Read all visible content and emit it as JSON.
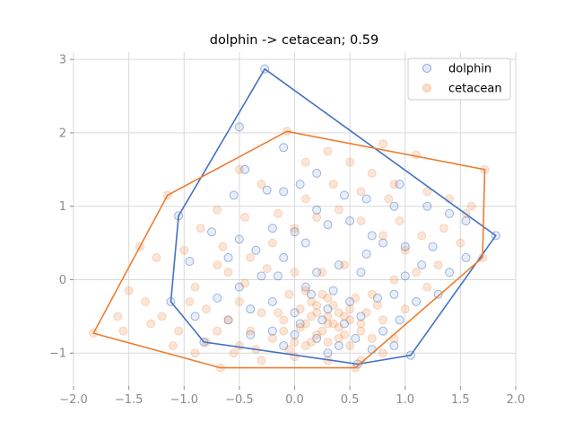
{
  "chart_data": {
    "type": "scatter",
    "title": "dolphin -> cetacean; 0.59",
    "xlabel": "",
    "ylabel": "",
    "xlim": [
      -2.0,
      2.0
    ],
    "ylim": [
      -1.45,
      3.1
    ],
    "xticks": [
      -2.0,
      -1.5,
      -1.0,
      -0.5,
      0.0,
      0.5,
      1.0,
      1.5,
      2.0
    ],
    "xtick_labels": [
      "−2.0",
      "−1.5",
      "−1.0",
      "−0.5",
      "0.0",
      "0.5",
      "1.0",
      "1.5",
      "2.0"
    ],
    "yticks": [
      -1,
      0,
      1,
      2,
      3
    ],
    "ytick_labels": [
      "−1",
      "0",
      "1",
      "2",
      "3"
    ],
    "grid": true,
    "legend_position": "top-right",
    "series": [
      {
        "name": "dolphin",
        "color": "#4472c4",
        "marker": "circle-open-translucent",
        "hull": [
          [
            -0.27,
            2.87
          ],
          [
            1.82,
            0.6
          ],
          [
            1.05,
            -1.03
          ],
          [
            0.57,
            -1.15
          ],
          [
            -0.82,
            -0.85
          ],
          [
            -1.12,
            -0.3
          ],
          [
            -1.05,
            0.87
          ]
        ],
        "points": [
          [
            -0.27,
            2.87
          ],
          [
            -0.5,
            2.08
          ],
          [
            -0.45,
            1.5
          ],
          [
            -0.1,
            1.8
          ],
          [
            -0.55,
            1.15
          ],
          [
            -0.25,
            1.22
          ],
          [
            -0.1,
            1.2
          ],
          [
            0.05,
            1.3
          ],
          [
            0.2,
            1.45
          ],
          [
            0.45,
            1.15
          ],
          [
            0.65,
            1.1
          ],
          [
            0.9,
            1.0
          ],
          [
            0.95,
            1.3
          ],
          [
            1.2,
            1.0
          ],
          [
            1.4,
            0.9
          ],
          [
            1.55,
            0.8
          ],
          [
            1.82,
            0.6
          ],
          [
            -0.75,
            0.65
          ],
          [
            -0.5,
            0.55
          ],
          [
            -0.35,
            0.4
          ],
          [
            -0.6,
            0.3
          ],
          [
            -0.95,
            0.25
          ],
          [
            -1.05,
            0.87
          ],
          [
            -0.2,
            0.7
          ],
          [
            0.0,
            0.65
          ],
          [
            0.1,
            0.5
          ],
          [
            0.3,
            0.75
          ],
          [
            0.5,
            0.8
          ],
          [
            0.7,
            0.6
          ],
          [
            0.8,
            0.5
          ],
          [
            1.0,
            0.45
          ],
          [
            1.15,
            0.2
          ],
          [
            1.25,
            0.45
          ],
          [
            1.4,
            0.1
          ],
          [
            1.55,
            0.3
          ],
          [
            1.3,
            -0.2
          ],
          [
            1.1,
            -0.3
          ],
          [
            0.9,
            -0.2
          ],
          [
            0.6,
            0.1
          ],
          [
            0.4,
            0.2
          ],
          [
            0.2,
            0.1
          ],
          [
            -0.1,
            0.3
          ],
          [
            -0.3,
            0.05
          ],
          [
            -0.5,
            -0.1
          ],
          [
            -0.7,
            -0.25
          ],
          [
            -1.12,
            -0.3
          ],
          [
            -0.9,
            -0.5
          ],
          [
            -0.6,
            -0.55
          ],
          [
            -0.4,
            -0.4
          ],
          [
            -0.2,
            -0.3
          ],
          [
            0.0,
            -0.45
          ],
          [
            0.15,
            -0.2
          ],
          [
            0.3,
            -0.4
          ],
          [
            0.45,
            -0.6
          ],
          [
            0.6,
            -0.5
          ],
          [
            0.8,
            -0.7
          ],
          [
            0.95,
            -0.55
          ],
          [
            1.05,
            -1.03
          ],
          [
            0.9,
            -0.9
          ],
          [
            0.7,
            -0.95
          ],
          [
            0.57,
            -1.15
          ],
          [
            0.4,
            -0.9
          ],
          [
            0.2,
            -0.8
          ],
          [
            0.0,
            -0.75
          ],
          [
            -0.2,
            -0.7
          ],
          [
            -0.4,
            -0.75
          ],
          [
            -0.82,
            -0.85
          ],
          [
            0.1,
            -0.1
          ],
          [
            0.25,
            -0.55
          ],
          [
            0.35,
            -0.15
          ],
          [
            0.5,
            -0.3
          ],
          [
            0.05,
            -0.6
          ],
          [
            -0.1,
            -0.9
          ],
          [
            0.3,
            -1.0
          ],
          [
            0.55,
            -0.8
          ],
          [
            0.75,
            -0.25
          ],
          [
            1.0,
            0.05
          ],
          [
            0.65,
            0.35
          ],
          [
            -0.15,
            0.05
          ],
          [
            0.2,
            0.95
          ]
        ]
      },
      {
        "name": "cetacean",
        "color": "#ed7d31",
        "marker": "circle-filled-translucent",
        "hull": [
          [
            -0.07,
            2.02
          ],
          [
            1.72,
            1.5
          ],
          [
            1.7,
            0.3
          ],
          [
            0.55,
            -1.2
          ],
          [
            -0.67,
            -1.2
          ],
          [
            -1.82,
            -0.73
          ],
          [
            -1.15,
            1.15
          ]
        ],
        "points": [
          [
            -0.07,
            2.02
          ],
          [
            0.8,
            1.85
          ],
          [
            1.1,
            1.7
          ],
          [
            1.72,
            1.5
          ],
          [
            -1.15,
            1.15
          ],
          [
            -1.82,
            -0.73
          ],
          [
            -0.67,
            -1.2
          ],
          [
            0.55,
            -1.2
          ],
          [
            1.7,
            0.3
          ],
          [
            -1.4,
            0.45
          ],
          [
            -1.5,
            -0.15
          ],
          [
            -1.3,
            -0.6
          ],
          [
            -1.6,
            -0.5
          ],
          [
            -1.1,
            -0.9
          ],
          [
            -0.9,
            -1.0
          ],
          [
            -1.0,
            0.4
          ],
          [
            -0.85,
            0.7
          ],
          [
            -0.7,
            0.95
          ],
          [
            -0.5,
            1.5
          ],
          [
            -0.3,
            1.3
          ],
          [
            0.1,
            1.6
          ],
          [
            0.3,
            1.75
          ],
          [
            0.5,
            1.6
          ],
          [
            0.7,
            1.45
          ],
          [
            0.9,
            1.3
          ],
          [
            1.2,
            1.2
          ],
          [
            1.4,
            1.1
          ],
          [
            1.55,
            0.9
          ],
          [
            1.5,
            0.5
          ],
          [
            1.3,
            0.2
          ],
          [
            1.2,
            -0.1
          ],
          [
            1.0,
            -0.4
          ],
          [
            0.9,
            -0.8
          ],
          [
            0.8,
            -1.0
          ],
          [
            0.6,
            -1.1
          ],
          [
            0.3,
            -1.1
          ],
          [
            0.0,
            -1.05
          ],
          [
            -0.3,
            -1.1
          ],
          [
            -0.5,
            -0.9
          ],
          [
            -0.7,
            -0.7
          ],
          [
            -0.8,
            -0.4
          ],
          [
            -0.9,
            -0.1
          ],
          [
            -0.6,
            0.1
          ],
          [
            -0.4,
            0.3
          ],
          [
            -0.2,
            0.5
          ],
          [
            0.0,
            0.7
          ],
          [
            0.2,
            0.85
          ],
          [
            0.4,
            0.95
          ],
          [
            0.6,
            0.8
          ],
          [
            0.8,
            0.6
          ],
          [
            1.0,
            0.4
          ],
          [
            1.1,
            0.1
          ],
          [
            0.9,
            0.0
          ],
          [
            0.7,
            -0.2
          ],
          [
            0.5,
            -0.4
          ],
          [
            0.3,
            -0.5
          ],
          [
            0.1,
            -0.6
          ],
          [
            -0.1,
            -0.55
          ],
          [
            -0.3,
            -0.45
          ],
          [
            -0.5,
            -0.3
          ],
          [
            -0.6,
            -0.55
          ],
          [
            -0.4,
            -0.7
          ],
          [
            -0.2,
            -0.8
          ],
          [
            0.0,
            -0.85
          ],
          [
            0.2,
            -0.75
          ],
          [
            0.4,
            -0.65
          ],
          [
            0.6,
            -0.7
          ],
          [
            0.8,
            -0.55
          ],
          [
            0.15,
            -0.3
          ],
          [
            0.25,
            -0.2
          ],
          [
            0.35,
            -0.35
          ],
          [
            0.45,
            -0.5
          ],
          [
            0.05,
            -0.4
          ],
          [
            -0.05,
            -0.2
          ],
          [
            0.2,
            -0.45
          ],
          [
            0.3,
            -0.6
          ],
          [
            0.4,
            -0.8
          ],
          [
            0.5,
            -0.9
          ],
          [
            0.1,
            -0.9
          ],
          [
            -0.1,
            -0.7
          ],
          [
            0.55,
            -0.25
          ],
          [
            0.65,
            -0.45
          ],
          [
            0.75,
            -0.35
          ],
          [
            0.25,
            0.1
          ],
          [
            0.45,
            0.2
          ],
          [
            0.0,
            0.1
          ],
          [
            -0.25,
            0.15
          ],
          [
            -0.45,
            -0.05
          ],
          [
            -0.7,
            0.2
          ],
          [
            -0.95,
            -0.3
          ],
          [
            -1.2,
            -0.5
          ],
          [
            -1.05,
            -0.7
          ],
          [
            -0.8,
            -0.85
          ],
          [
            -0.55,
            -1.0
          ],
          [
            -0.35,
            -0.95
          ],
          [
            0.95,
            0.8
          ],
          [
            1.15,
            0.6
          ],
          [
            1.35,
            0.7
          ],
          [
            1.6,
            1.0
          ],
          [
            0.85,
            1.1
          ],
          [
            0.6,
            1.2
          ],
          [
            0.35,
            1.3
          ],
          [
            0.1,
            1.1
          ],
          [
            -0.15,
            0.9
          ],
          [
            -0.45,
            0.85
          ],
          [
            -0.65,
            0.45
          ],
          [
            -1.25,
            0.3
          ],
          [
            -1.35,
            -0.3
          ],
          [
            -1.55,
            -0.7
          ],
          [
            0.15,
            -0.5
          ],
          [
            0.2,
            -0.35
          ],
          [
            0.3,
            -0.25
          ],
          [
            0.1,
            -0.15
          ],
          [
            0.4,
            -0.45
          ],
          [
            0.35,
            -0.6
          ],
          [
            0.25,
            -0.7
          ],
          [
            0.05,
            -0.65
          ],
          [
            -0.15,
            -0.45
          ],
          [
            0.5,
            -0.55
          ],
          [
            0.6,
            -0.6
          ],
          [
            0.7,
            -0.8
          ],
          [
            0.45,
            -0.75
          ],
          [
            0.15,
            -0.85
          ],
          [
            -0.05,
            -0.95
          ],
          [
            0.3,
            -0.85
          ]
        ]
      }
    ]
  }
}
